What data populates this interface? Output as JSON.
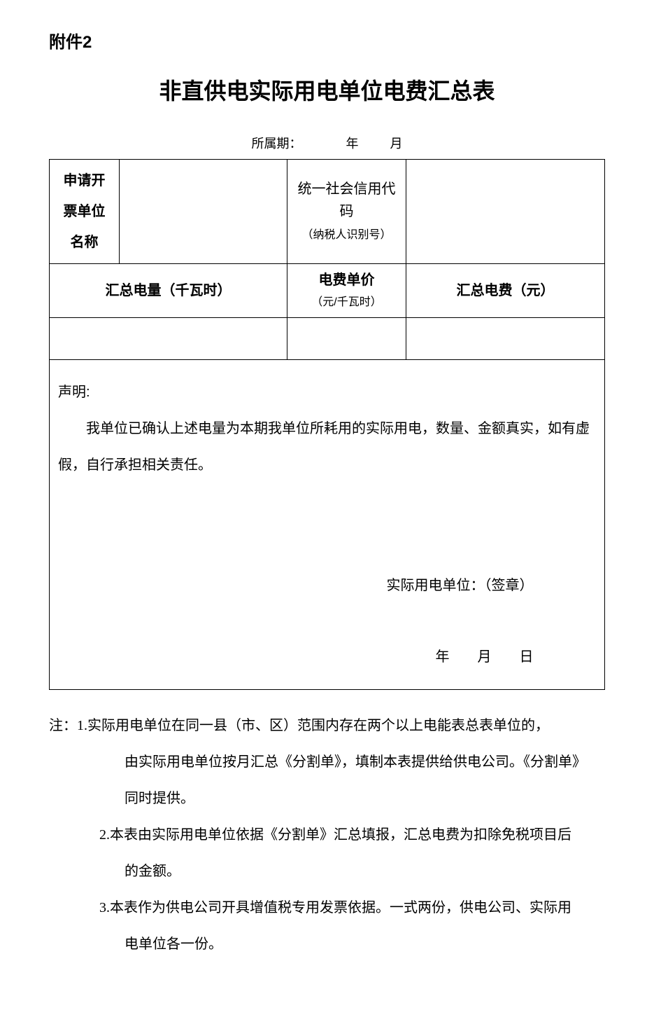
{
  "attachment_label": "附件2",
  "title": "非直供电实际用电单位电费汇总表",
  "period": {
    "label": "所属期：",
    "year_suffix": "年",
    "month_suffix": "月"
  },
  "row1": {
    "applicant_label": "申请开票单位名称",
    "applicant_value": "",
    "credit_code_label_main": "统一社会信用代码",
    "credit_code_label_sub": "（纳税人识别号）",
    "credit_code_value": ""
  },
  "row2": {
    "total_qty_label": "汇总电量（千瓦时）",
    "unit_price_label_main": "电费单价",
    "unit_price_label_sub": "（元/千瓦时）",
    "total_fee_label": "汇总电费（元）"
  },
  "row3": {
    "total_qty_value": "",
    "unit_price_value": "",
    "total_fee_value": ""
  },
  "declaration": {
    "label": "声明:",
    "body": "我单位已确认上述电量为本期我单位所耗用的实际用电，数量、金额真实，如有虚假，自行承担相关责任。",
    "signature": "实际用电单位：（签章）",
    "date": "年　　月　　日"
  },
  "notes": {
    "prefix": "注：",
    "items": [
      "1.实际用电单位在同一县（市、区）范围内存在两个以上电能表总表单位的，由实际用电单位按月汇总《分割单》，填制本表提供给供电公司。《分割单》同时提供。",
      "2.本表由实际用电单位依据《分割单》汇总填报，汇总电费为扣除免税项目后的金额。",
      "3.本表作为供电公司开具增值税专用发票依据。一式两份，供电公司、实际用电单位各一份。"
    ]
  },
  "colors": {
    "text": "#000000",
    "border": "#000000",
    "background": "#ffffff"
  }
}
